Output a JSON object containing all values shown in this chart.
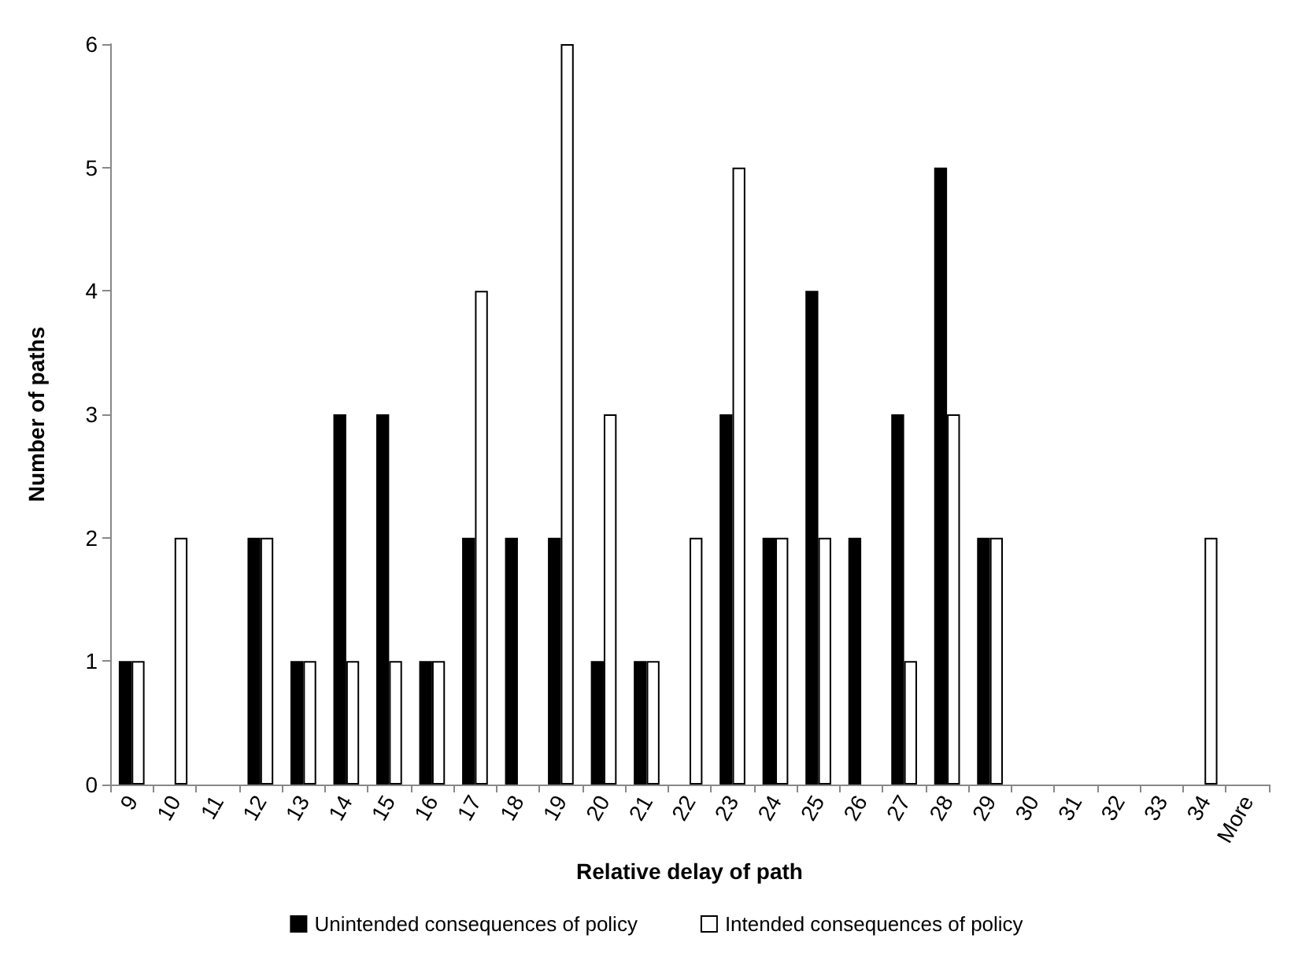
{
  "chart_data": {
    "type": "bar",
    "xlabel": "Relative delay of path",
    "ylabel": "Number of paths",
    "categories": [
      "9",
      "10",
      "11",
      "12",
      "13",
      "14",
      "15",
      "16",
      "17",
      "18",
      "19",
      "20",
      "21",
      "22",
      "23",
      "24",
      "25",
      "26",
      "27",
      "28",
      "29",
      "30",
      "31",
      "32",
      "33",
      "34",
      "More"
    ],
    "series": [
      {
        "name": "Unintended consequences of policy",
        "color": "#000000",
        "values": [
          1,
          0,
          0,
          2,
          1,
          3,
          3,
          1,
          2,
          2,
          2,
          1,
          1,
          0,
          3,
          2,
          4,
          2,
          3,
          5,
          2,
          0,
          0,
          0,
          0,
          0,
          0
        ]
      },
      {
        "name": "Intended consequences of policy",
        "color": "#ffffff",
        "values": [
          1,
          2,
          0,
          2,
          1,
          1,
          1,
          1,
          4,
          0,
          6,
          3,
          1,
          2,
          5,
          2,
          2,
          0,
          1,
          3,
          2,
          0,
          0,
          0,
          0,
          2,
          0
        ]
      }
    ],
    "ylim": [
      0,
      6
    ],
    "yticks": [
      0,
      1,
      2,
      3,
      4,
      5,
      6
    ],
    "grid": false,
    "legend": "bottom"
  }
}
